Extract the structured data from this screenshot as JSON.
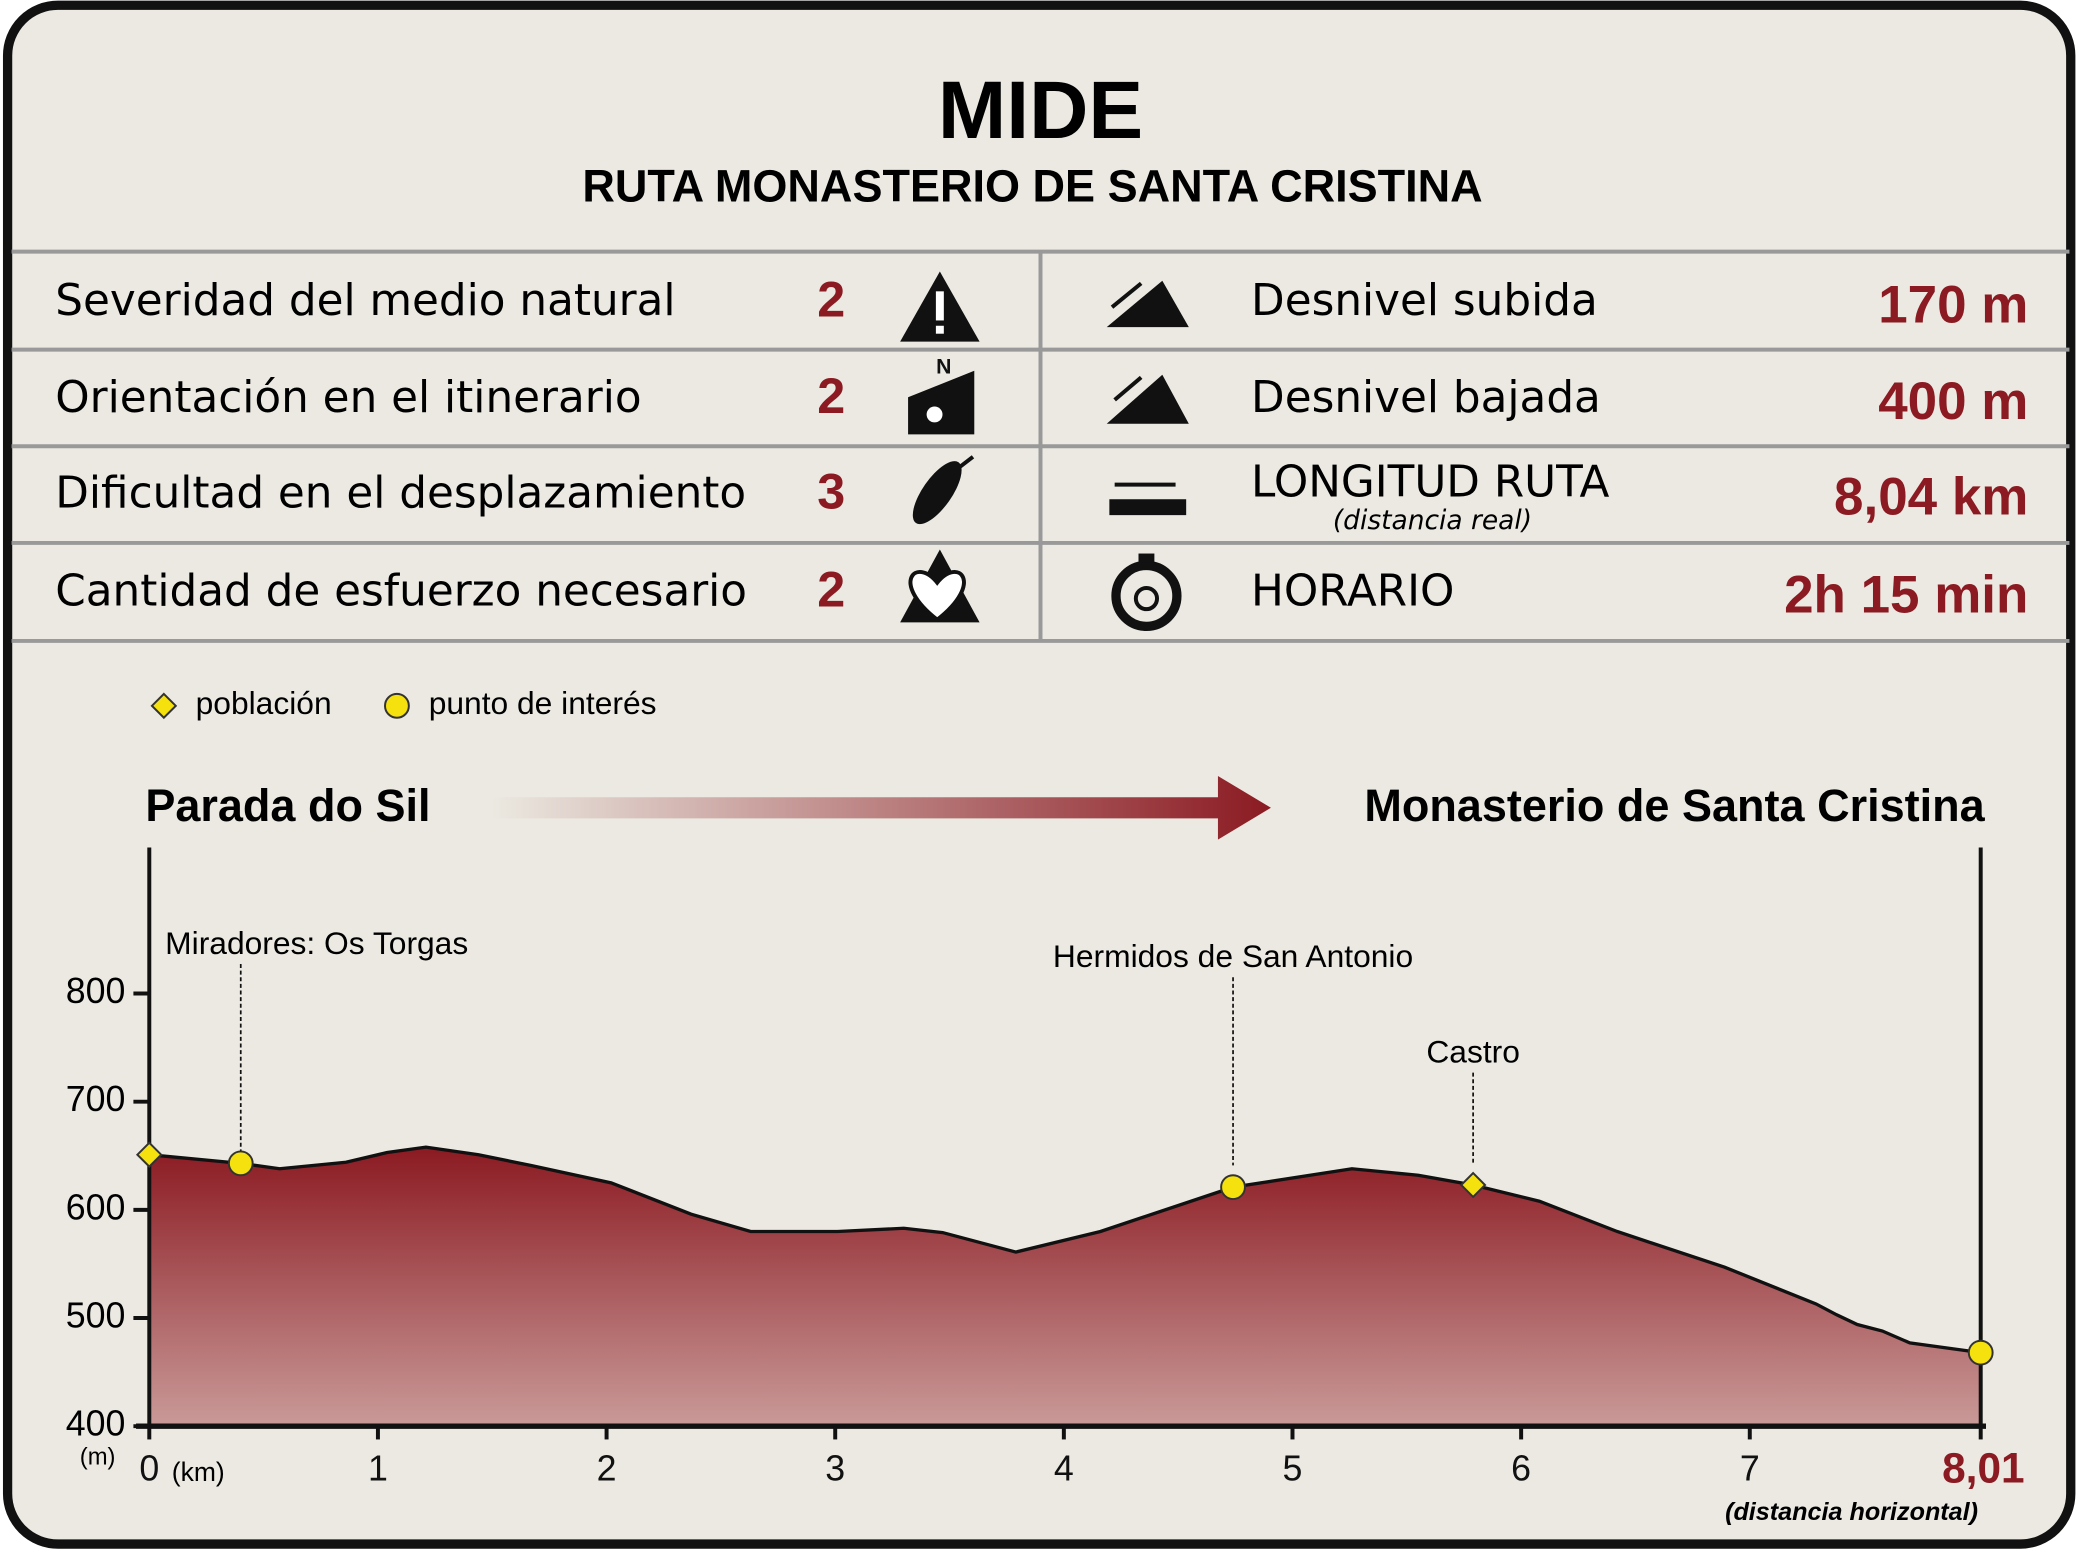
{
  "header": {
    "title": "MIDE",
    "subtitle": "RUTA MONASTERIO DE SANTA CRISTINA"
  },
  "table": {
    "left": [
      {
        "label": "Severidad del medio natural",
        "value": "2"
      },
      {
        "label": "Orientación en el itinerario",
        "value": "2"
      },
      {
        "label": "Dificultad en el desplazamiento",
        "value": "3"
      },
      {
        "label": "Cantidad de esfuerzo necesario",
        "value": "2"
      }
    ],
    "right": [
      {
        "label": "Desnivel subida",
        "value": "170 m"
      },
      {
        "label": "Desnivel bajada",
        "value": "400 m"
      },
      {
        "label": "LONGITUD RUTA",
        "sublabel": "(distancia real)",
        "value": "8,04 km"
      },
      {
        "label": "HORARIO",
        "value": "2h 15 min"
      }
    ]
  },
  "chart_data": {
    "type": "area",
    "start_label": "Parada do Sil",
    "end_label": "Monasterio de Santa Cristina",
    "y_unit": "(m)",
    "x_unit": "(km)",
    "x_note": "(distancia horizontal)",
    "xlim": [
      0,
      8.01
    ],
    "ylim": [
      400,
      935
    ],
    "xticks": [
      0,
      1,
      2,
      3,
      4,
      5,
      6,
      7,
      {
        "value": 8.01,
        "label": "8,01"
      }
    ],
    "yticks": [
      400,
      500,
      600,
      700,
      800
    ],
    "series": [
      {
        "name": null,
        "color": "#8b1a22",
        "x": [
          0,
          0.4,
          0.57,
          0.86,
          1.04,
          1.21,
          1.44,
          1.67,
          2.02,
          2.37,
          2.63,
          3.01,
          3.3,
          3.47,
          3.79,
          4.16,
          4.74,
          5.26,
          5.55,
          5.79,
          6.08,
          6.42,
          6.89,
          7.29,
          7.38,
          7.47,
          7.58,
          7.7,
          8.01
        ],
        "y": [
          651,
          643,
          638,
          644,
          653,
          658,
          651,
          641,
          625,
          596,
          580,
          580,
          583,
          579,
          561,
          580,
          621,
          638,
          632,
          623,
          608,
          580,
          547,
          513,
          503,
          494,
          488,
          477,
          468
        ]
      }
    ],
    "marker_types": [
      {
        "name": "población",
        "shape": "diamond",
        "color": "#f5e10d",
        "x": [
          0,
          5.79
        ],
        "y": [
          651,
          623
        ]
      },
      {
        "name": "punto de interés",
        "shape": "circle",
        "color": "#f5e10d",
        "x": [
          0.4,
          4.74,
          8.01
        ],
        "y": [
          643,
          621,
          468
        ]
      }
    ],
    "annotations": [
      {
        "text": "Miradores: Os Torgas",
        "x": 0.4
      },
      {
        "text": "Hermidos de San Antonio",
        "x": 4.74
      },
      {
        "text": "Castro",
        "x": 5.79
      }
    ]
  }
}
